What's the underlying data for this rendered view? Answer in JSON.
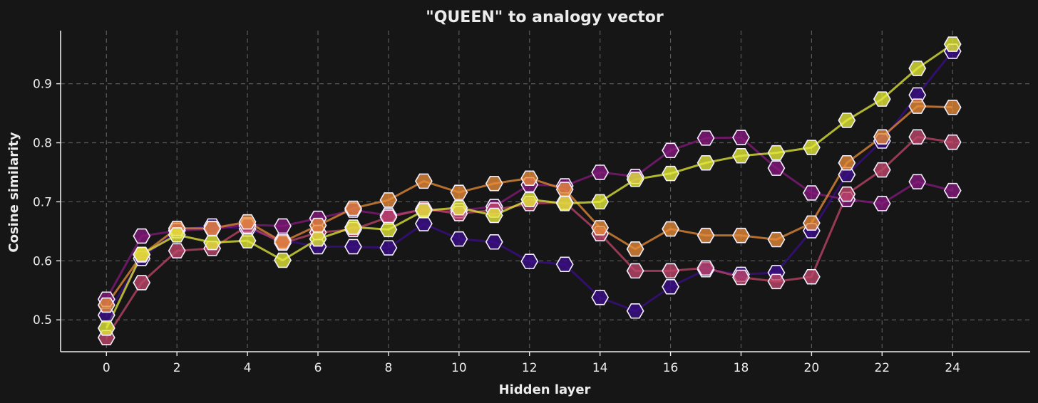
{
  "chart_data": {
    "type": "line",
    "title": "\"QUEEN\" to analogy vector",
    "xlabel": "Hidden layer",
    "ylabel": "Cosine similarity",
    "xlim": [
      -1.3,
      26.2
    ],
    "ylim": [
      0.446,
      0.99
    ],
    "xticks": [
      0,
      2,
      4,
      6,
      8,
      10,
      12,
      14,
      16,
      18,
      20,
      22,
      24
    ],
    "yticks": [
      0.5,
      0.6,
      0.7,
      0.8,
      0.9
    ],
    "grid": true,
    "x": [
      0,
      1,
      2,
      3,
      4,
      5,
      6,
      7,
      8,
      9,
      10,
      11,
      12,
      13,
      14,
      15,
      16,
      17,
      18,
      19,
      20,
      21,
      22,
      23,
      24
    ],
    "series": [
      {
        "color": "#3c0e8a",
        "values": [
          0.508,
          0.604,
          0.652,
          0.659,
          0.654,
          0.635,
          0.624,
          0.624,
          0.622,
          0.663,
          0.637,
          0.632,
          0.599,
          0.594,
          0.538,
          0.515,
          0.556,
          0.585,
          0.577,
          0.58,
          0.651,
          0.746,
          0.803,
          0.881,
          0.955
        ]
      },
      {
        "color": "#86197e",
        "values": [
          0.535,
          0.642,
          0.651,
          0.654,
          0.661,
          0.659,
          0.672,
          0.686,
          0.677,
          0.686,
          0.685,
          0.692,
          0.729,
          0.727,
          0.75,
          0.743,
          0.787,
          0.808,
          0.809,
          0.757,
          0.715,
          0.704,
          0.697,
          0.734,
          0.719
        ]
      },
      {
        "color": "#c0466a",
        "values": [
          0.47,
          0.563,
          0.617,
          0.621,
          0.659,
          0.63,
          0.648,
          0.653,
          0.674,
          0.688,
          0.68,
          0.686,
          0.697,
          0.699,
          0.646,
          0.583,
          0.583,
          0.588,
          0.572,
          0.565,
          0.573,
          0.713,
          0.754,
          0.81,
          0.801
        ]
      },
      {
        "color": "#e88c3a",
        "values": [
          0.525,
          0.61,
          0.655,
          0.655,
          0.666,
          0.632,
          0.66,
          0.689,
          0.703,
          0.735,
          0.716,
          0.731,
          0.74,
          0.721,
          0.656,
          0.62,
          0.654,
          0.643,
          0.643,
          0.636,
          0.664,
          0.766,
          0.81,
          0.862,
          0.86
        ]
      },
      {
        "color": "#e6ec3a",
        "values": [
          0.486,
          0.611,
          0.644,
          0.631,
          0.634,
          0.601,
          0.637,
          0.657,
          0.653,
          0.685,
          0.69,
          0.677,
          0.704,
          0.697,
          0.7,
          0.738,
          0.748,
          0.766,
          0.778,
          0.783,
          0.792,
          0.838,
          0.874,
          0.926,
          0.967
        ]
      }
    ]
  }
}
